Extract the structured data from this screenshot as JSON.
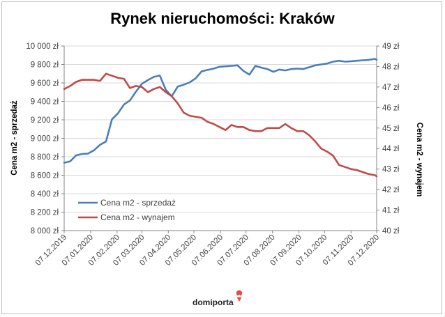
{
  "chart_data": {
    "type": "line",
    "title": "Rynek nieruchomości: Kraków",
    "ylabel_left": "Cena m2 - sprzedaż",
    "ylabel_right": "Cena m2 - wynajem",
    "x_start": "2019-12-07",
    "x_end": "2020-12-07",
    "x_tick_labels": [
      "07.12.2019",
      "07.01.2020",
      "07.02.2020",
      "07.03.2020",
      "07.04.2020",
      "07.05.2020",
      "07.06.2020",
      "07.07.2020",
      "07.08.2020",
      "07.09.2020",
      "07.10.2020",
      "07.11.2020",
      "07.12.2020"
    ],
    "y_left": {
      "min": 8000,
      "max": 10000,
      "step": 200,
      "tick_labels": [
        "8 000 zł",
        "8 200 zł",
        "8 400 zł",
        "8 600 zł",
        "8 800 zł",
        "9 000 zł",
        "9 200 zł",
        "9 400 zł",
        "9 600 zł",
        "9 800 zł",
        "10 000 zł"
      ]
    },
    "y_right": {
      "min": 40,
      "max": 49,
      "step": 1,
      "tick_labels": [
        "40 zł",
        "41 zł",
        "42 zł",
        "43 zł",
        "44 zł",
        "45 zł",
        "46 zł",
        "47 zł",
        "48 zł",
        "49 zł"
      ]
    },
    "grid": "horizontal",
    "legend_position": "lower-left",
    "series": [
      {
        "name": "Cena m2 - sprzedaż",
        "axis": "left",
        "color": "#4a7ebb",
        "points": [
          [
            "2019-12-07",
            8735
          ],
          [
            "2019-12-14",
            8750
          ],
          [
            "2019-12-21",
            8815
          ],
          [
            "2019-12-28",
            8830
          ],
          [
            "2020-01-04",
            8835
          ],
          [
            "2020-01-11",
            8870
          ],
          [
            "2020-01-18",
            8930
          ],
          [
            "2020-01-25",
            8965
          ],
          [
            "2020-02-01",
            9205
          ],
          [
            "2020-02-08",
            9270
          ],
          [
            "2020-02-15",
            9365
          ],
          [
            "2020-02-22",
            9410
          ],
          [
            "2020-02-29",
            9505
          ],
          [
            "2020-03-07",
            9590
          ],
          [
            "2020-03-14",
            9630
          ],
          [
            "2020-03-21",
            9665
          ],
          [
            "2020-03-28",
            9680
          ],
          [
            "2020-04-04",
            9525
          ],
          [
            "2020-04-11",
            9455
          ],
          [
            "2020-04-18",
            9560
          ],
          [
            "2020-04-25",
            9580
          ],
          [
            "2020-05-02",
            9605
          ],
          [
            "2020-05-09",
            9650
          ],
          [
            "2020-05-16",
            9725
          ],
          [
            "2020-05-23",
            9740
          ],
          [
            "2020-05-30",
            9755
          ],
          [
            "2020-06-06",
            9775
          ],
          [
            "2020-06-13",
            9780
          ],
          [
            "2020-06-20",
            9785
          ],
          [
            "2020-06-27",
            9790
          ],
          [
            "2020-07-04",
            9730
          ],
          [
            "2020-07-11",
            9690
          ],
          [
            "2020-07-18",
            9785
          ],
          [
            "2020-07-25",
            9765
          ],
          [
            "2020-08-01",
            9750
          ],
          [
            "2020-08-08",
            9720
          ],
          [
            "2020-08-15",
            9745
          ],
          [
            "2020-08-22",
            9735
          ],
          [
            "2020-08-29",
            9750
          ],
          [
            "2020-09-05",
            9755
          ],
          [
            "2020-09-12",
            9750
          ],
          [
            "2020-09-19",
            9770
          ],
          [
            "2020-09-26",
            9790
          ],
          [
            "2020-10-03",
            9800
          ],
          [
            "2020-10-10",
            9810
          ],
          [
            "2020-10-17",
            9830
          ],
          [
            "2020-10-24",
            9840
          ],
          [
            "2020-10-31",
            9830
          ],
          [
            "2020-11-07",
            9835
          ],
          [
            "2020-11-14",
            9840
          ],
          [
            "2020-11-21",
            9845
          ],
          [
            "2020-11-28",
            9850
          ],
          [
            "2020-12-05",
            9860
          ],
          [
            "2020-12-07",
            9850
          ]
        ]
      },
      {
        "name": "Cena m2 - wynajem",
        "axis": "right",
        "color": "#be4b48",
        "points": [
          [
            "2019-12-07",
            46.9
          ],
          [
            "2019-12-14",
            47.05
          ],
          [
            "2019-12-21",
            47.25
          ],
          [
            "2019-12-28",
            47.35
          ],
          [
            "2020-01-04",
            47.35
          ],
          [
            "2020-01-11",
            47.35
          ],
          [
            "2020-01-18",
            47.3
          ],
          [
            "2020-01-25",
            47.65
          ],
          [
            "2020-02-01",
            47.55
          ],
          [
            "2020-02-08",
            47.45
          ],
          [
            "2020-02-15",
            47.4
          ],
          [
            "2020-02-22",
            46.95
          ],
          [
            "2020-02-29",
            47.05
          ],
          [
            "2020-03-07",
            47.0
          ],
          [
            "2020-03-14",
            46.75
          ],
          [
            "2020-03-21",
            46.9
          ],
          [
            "2020-03-28",
            47.0
          ],
          [
            "2020-04-04",
            46.75
          ],
          [
            "2020-04-11",
            46.55
          ],
          [
            "2020-04-18",
            46.2
          ],
          [
            "2020-04-25",
            45.75
          ],
          [
            "2020-05-02",
            45.6
          ],
          [
            "2020-05-09",
            45.55
          ],
          [
            "2020-05-16",
            45.5
          ],
          [
            "2020-05-23",
            45.3
          ],
          [
            "2020-05-30",
            45.2
          ],
          [
            "2020-06-06",
            45.05
          ],
          [
            "2020-06-13",
            44.9
          ],
          [
            "2020-06-20",
            45.15
          ],
          [
            "2020-06-27",
            45.05
          ],
          [
            "2020-07-04",
            45.05
          ],
          [
            "2020-07-11",
            44.9
          ],
          [
            "2020-07-18",
            44.85
          ],
          [
            "2020-07-25",
            44.85
          ],
          [
            "2020-08-01",
            45.0
          ],
          [
            "2020-08-08",
            45.0
          ],
          [
            "2020-08-15",
            45.0
          ],
          [
            "2020-08-22",
            45.2
          ],
          [
            "2020-08-29",
            45.0
          ],
          [
            "2020-09-05",
            44.85
          ],
          [
            "2020-09-12",
            44.85
          ],
          [
            "2020-09-19",
            44.65
          ],
          [
            "2020-09-26",
            44.35
          ],
          [
            "2020-10-03",
            44.0
          ],
          [
            "2020-10-10",
            43.85
          ],
          [
            "2020-10-17",
            43.65
          ],
          [
            "2020-10-24",
            43.2
          ],
          [
            "2020-10-31",
            43.1
          ],
          [
            "2020-11-07",
            43.0
          ],
          [
            "2020-11-14",
            42.95
          ],
          [
            "2020-11-21",
            42.85
          ],
          [
            "2020-11-28",
            42.75
          ],
          [
            "2020-12-05",
            42.7
          ],
          [
            "2020-12-07",
            42.65
          ]
        ]
      }
    ]
  },
  "branding": {
    "logo_text": "domiporta",
    "logo_color": "#e94b3c"
  }
}
